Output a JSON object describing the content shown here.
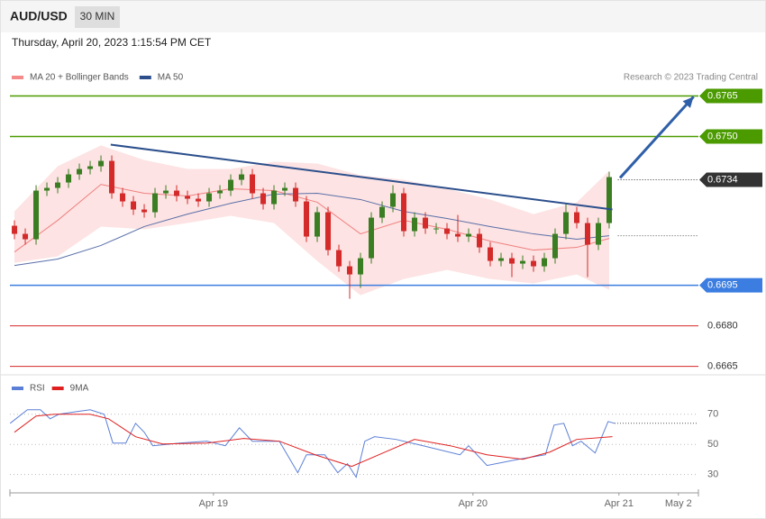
{
  "header": {
    "symbol": "AUD/USD",
    "timeframe": "30 MIN",
    "timestamp": "Thursday, April 20, 2023 1:15:54 PM CET"
  },
  "source": "Research © 2023 Trading Central",
  "chart_data": [
    {
      "type": "candlestick",
      "xlim": [
        -0.42,
        63.25
      ],
      "ylim": [
        0.66622,
        0.67805
      ],
      "up_color": "#3a7d22",
      "down_color": "#d42a2a",
      "open": [
        0.6717,
        0.6714,
        0.6712,
        0.673,
        0.6731,
        0.6733,
        0.6736,
        0.6738,
        0.6739,
        0.6741,
        0.6729,
        0.6726,
        0.6723,
        0.6722,
        0.6729,
        0.673,
        0.6728,
        0.6727,
        0.6726,
        0.6729,
        0.673,
        0.6734,
        0.6736,
        0.6729,
        0.6725,
        0.673,
        0.6731,
        0.6726,
        0.6713,
        0.6722,
        0.6708,
        0.6702,
        0.6699,
        0.6705,
        0.672,
        0.6724,
        0.6729,
        0.6715,
        0.672,
        0.6716,
        0.6716,
        0.6714,
        0.6713,
        0.6714,
        0.6709,
        0.6704,
        0.6705,
        0.6703,
        0.6704,
        0.6702,
        0.6705,
        0.6714,
        0.6722,
        0.6718,
        0.671,
        0.6718
      ],
      "high": [
        0.6719,
        0.6716,
        0.6732,
        0.6733,
        0.6735,
        0.6738,
        0.674,
        0.6741,
        0.6743,
        0.6743,
        0.6731,
        0.6728,
        0.6725,
        0.6731,
        0.6732,
        0.6732,
        0.673,
        0.6729,
        0.6731,
        0.6732,
        0.6736,
        0.6738,
        0.6738,
        0.6731,
        0.6732,
        0.6733,
        0.6733,
        0.6728,
        0.6724,
        0.6724,
        0.671,
        0.6704,
        0.6707,
        0.6722,
        0.6726,
        0.6732,
        0.6731,
        0.6722,
        0.6722,
        0.6718,
        0.6718,
        0.6721,
        0.6716,
        0.6716,
        0.6711,
        0.6707,
        0.6707,
        0.6706,
        0.6706,
        0.6707,
        0.6716,
        0.6725,
        0.6724,
        0.672,
        0.672,
        0.6737
      ],
      "low": [
        0.6712,
        0.671,
        0.671,
        0.6728,
        0.6729,
        0.6731,
        0.6734,
        0.6736,
        0.6737,
        0.6727,
        0.6724,
        0.6721,
        0.672,
        0.672,
        0.6727,
        0.6726,
        0.6725,
        0.6724,
        0.6724,
        0.6727,
        0.6728,
        0.6732,
        0.6727,
        0.6723,
        0.6723,
        0.6728,
        0.6724,
        0.6711,
        0.6711,
        0.6706,
        0.67,
        0.669,
        0.6694,
        0.6703,
        0.6718,
        0.6722,
        0.6713,
        0.6713,
        0.6714,
        0.6714,
        0.6712,
        0.6711,
        0.6711,
        0.6707,
        0.6702,
        0.6702,
        0.6698,
        0.6701,
        0.67,
        0.67,
        0.6703,
        0.6712,
        0.6716,
        0.6698,
        0.6708,
        0.6716
      ],
      "close": [
        0.6714,
        0.6712,
        0.673,
        0.6731,
        0.6733,
        0.6736,
        0.6738,
        0.6739,
        0.6741,
        0.6729,
        0.6726,
        0.6723,
        0.6722,
        0.6729,
        0.673,
        0.6728,
        0.6727,
        0.6726,
        0.6729,
        0.673,
        0.6734,
        0.6736,
        0.6729,
        0.6725,
        0.673,
        0.6731,
        0.6726,
        0.6713,
        0.6722,
        0.6708,
        0.6702,
        0.6699,
        0.6705,
        0.672,
        0.6724,
        0.6729,
        0.6715,
        0.672,
        0.6716,
        0.6716,
        0.6714,
        0.6713,
        0.6714,
        0.6709,
        0.6704,
        0.6705,
        0.6703,
        0.6704,
        0.6702,
        0.6705,
        0.6714,
        0.6722,
        0.6718,
        0.671,
        0.6718,
        0.6735
      ],
      "series": [
        {
          "name": "MA 20 + Bollinger Bands",
          "color": "#f08080",
          "band_color": "#fde3e3",
          "legend_color": "#f48a8a",
          "x": [
            0,
            4,
            8,
            12,
            16,
            20,
            24,
            28,
            32,
            36,
            40,
            44,
            48,
            52,
            55
          ],
          "values": [
            0.67073,
            0.6719,
            0.67323,
            0.6729,
            0.6728,
            0.67307,
            0.673,
            0.67257,
            0.6714,
            0.6719,
            0.67157,
            0.67113,
            0.6708,
            0.6709,
            0.67123
          ],
          "upper": [
            0.67223,
            0.6739,
            0.67467,
            0.67413,
            0.6738,
            0.6738,
            0.67407,
            0.674,
            0.67357,
            0.6734,
            0.67307,
            0.67267,
            0.67213,
            0.67257,
            0.67373
          ],
          "lower": [
            0.67033,
            0.67057,
            0.67167,
            0.67157,
            0.6718,
            0.67207,
            0.6718,
            0.6704,
            0.66913,
            0.66973,
            0.67007,
            0.66973,
            0.66957,
            0.6699,
            0.66933
          ]
        },
        {
          "name": "MA 50",
          "color": "#5a6fa8",
          "legend_color": "#2c4f8c",
          "x": [
            0,
            4,
            8,
            12,
            16,
            20,
            24,
            28,
            32,
            36,
            40,
            44,
            48,
            52,
            55
          ],
          "values": [
            0.67023,
            0.67047,
            0.67097,
            0.67167,
            0.67213,
            0.67253,
            0.67287,
            0.6729,
            0.67267,
            0.67223,
            0.67197,
            0.67167,
            0.6714,
            0.6712,
            0.67133
          ]
        }
      ],
      "levels": [
        {
          "value": 0.6765,
          "label": "0.6765",
          "color": "#4a9a00",
          "style": "tag"
        },
        {
          "value": 0.675,
          "label": "0.6750",
          "color": "#4a9a00",
          "style": "tag"
        },
        {
          "value": 0.6734,
          "label": "0.6734",
          "color": "#333333",
          "style": "dotted-tag"
        },
        {
          "value": 0.6695,
          "label": "0.6695",
          "color": "#3b7de0",
          "style": "tag"
        },
        {
          "value": 0.668,
          "label": "0.6680",
          "color": "#d42a2a",
          "style": "text"
        },
        {
          "value": 0.6665,
          "label": "0.6665",
          "color": "#d42a2a",
          "style": "text"
        }
      ],
      "trendline": {
        "x": [
          8.9,
          55.3
        ],
        "y": [
          0.6747,
          0.6723
        ],
        "color": "#2c4f8c"
      },
      "arrow": {
        "x": [
          56,
          62.8
        ],
        "y": [
          0.67347,
          0.67647
        ],
        "color": "#2f5fa8"
      }
    },
    {
      "type": "line",
      "xlim": [
        -0.42,
        63.25
      ],
      "ylim": [
        19,
        95
      ],
      "yticks": [
        70,
        50,
        30
      ],
      "xticks": [
        {
          "value": 18.4,
          "label": "Apr 19"
        },
        {
          "value": 42.4,
          "label": "Apr 20"
        },
        {
          "value": 55.9,
          "label": "Apr 21"
        },
        {
          "value": 61.4,
          "label": "May 2"
        }
      ],
      "grid": true,
      "series": [
        {
          "name": "RSI",
          "color": "#5b7fd6",
          "x": [
            -0.4,
            1.2,
            2.4,
            3.3,
            4.1,
            5.8,
            7.0,
            8.3,
            9.1,
            10.3,
            11.2,
            12.0,
            12.8,
            15.3,
            17.8,
            19.5,
            20.8,
            22.0,
            24.5,
            26.2,
            27.0,
            28.7,
            29.9,
            30.8,
            31.6,
            32.4,
            33.3,
            35.3,
            37.8,
            41.2,
            42.0,
            43.7,
            46.6,
            49.1,
            49.9,
            50.8,
            51.6,
            52.4,
            53.7,
            54.9,
            55.5
          ],
          "values": [
            64.0,
            73.0,
            73.0,
            67.0,
            70.0,
            71.8,
            73.0,
            70.0,
            50.9,
            50.9,
            64.0,
            58.1,
            49.1,
            50.9,
            52.1,
            49.1,
            61.0,
            52.1,
            52.1,
            31.2,
            43.1,
            43.1,
            31.2,
            37.2,
            28.2,
            52.1,
            55.1,
            53.3,
            49.1,
            43.1,
            49.1,
            36.0,
            40.1,
            43.1,
            62.8,
            64.0,
            49.1,
            52.1,
            44.3,
            65.2,
            64.0
          ]
        },
        {
          "name": "9MA",
          "color": "#e02020",
          "x": [
            0,
            2,
            3.7,
            7,
            8.7,
            11.2,
            13.7,
            17.8,
            21.2,
            24.5,
            27.8,
            31.2,
            33.7,
            37,
            40.3,
            43.7,
            47,
            49.5,
            52,
            55.3
          ],
          "values": [
            58.1,
            68.8,
            70,
            70,
            67,
            55.1,
            50.3,
            50.9,
            53.9,
            52.1,
            43.1,
            35.4,
            43.1,
            53.3,
            49.1,
            43.1,
            40.1,
            44.9,
            53.3,
            55.1
          ]
        }
      ]
    }
  ]
}
